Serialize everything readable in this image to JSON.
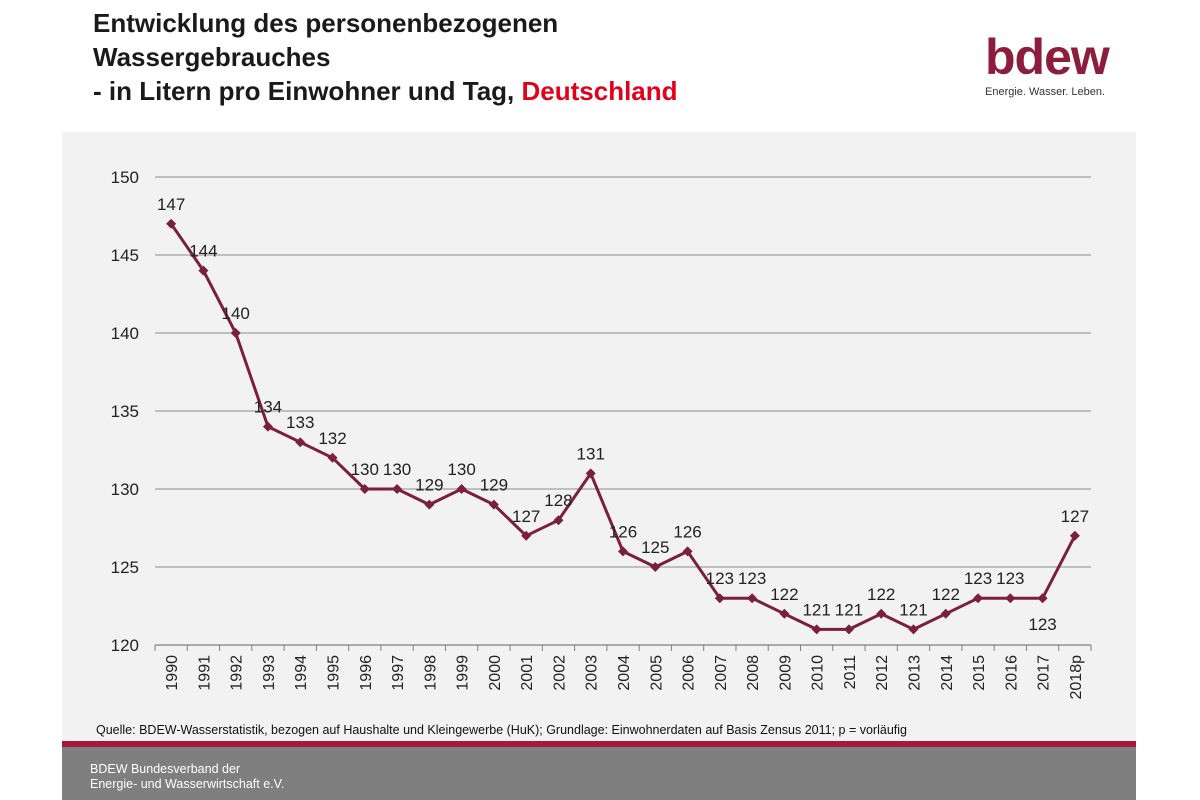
{
  "header": {
    "title_line1": "Entwicklung des personenbezogenen",
    "title_line2": "Wassergebrauches",
    "title_line3_prefix": "- in Litern pro Einwohner und Tag, ",
    "title_line3_highlight": "Deutschland",
    "highlight_color": "#e2001a"
  },
  "logo": {
    "word": "bdew",
    "tagline": "Energie. Wasser. Leben.",
    "color": "#8c1d3c"
  },
  "chart_data": {
    "type": "line",
    "title": "",
    "xlabel": "",
    "ylabel": "",
    "categories": [
      "1990",
      "1991",
      "1992",
      "1993",
      "1994",
      "1995",
      "1996",
      "1997",
      "1998",
      "1999",
      "2000",
      "2001",
      "2002",
      "2003",
      "2004",
      "2005",
      "2006",
      "2007",
      "2008",
      "2009",
      "2010",
      "2011",
      "2012",
      "2013",
      "2014",
      "2015",
      "2016",
      "2017",
      "2018p"
    ],
    "series": [
      {
        "name": "Wassergebrauch (l/Einwohner/Tag)",
        "values": [
          147,
          144,
          140,
          134,
          133,
          132,
          130,
          130,
          129,
          130,
          129,
          127,
          128,
          131,
          126,
          125,
          126,
          123,
          123,
          122,
          121,
          121,
          122,
          121,
          122,
          123,
          123,
          123,
          127
        ],
        "color": "#7b1f3f"
      }
    ],
    "ylim": [
      120,
      150
    ],
    "yticks": [
      120,
      125,
      130,
      135,
      140,
      145,
      150
    ],
    "grid": true,
    "legend": "none"
  },
  "source": "Quelle: BDEW-Wasserstatistik, bezogen auf Haushalte und Kleingewerbe (HuK); Grundlage: Einwohnerdaten auf Basis Zensus 2011; p = vorläufig",
  "footer": {
    "line1": "BDEW Bundesverband der",
    "line2": "Energie- und Wasserwirtschaft e.V."
  }
}
